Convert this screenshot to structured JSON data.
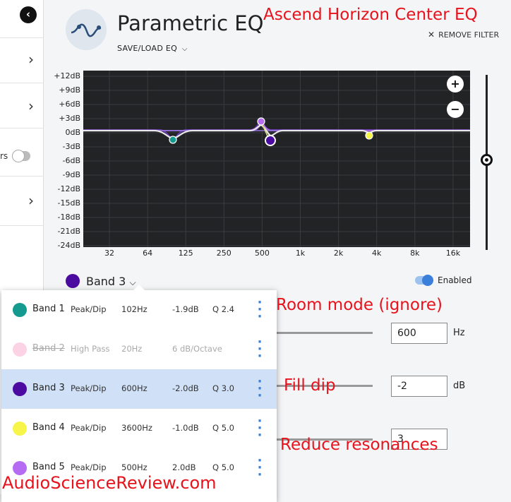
{
  "sidebar": {
    "partial_label": "rs"
  },
  "header": {
    "title": "Parametric EQ",
    "save_load": "SAVE/LOAD EQ",
    "remove_filter": "REMOVE FILTER"
  },
  "graph": {
    "y_labels": [
      "+12dB",
      "+9dB",
      "+6dB",
      "+3dB",
      "0dB",
      "-3dB",
      "-6dB",
      "-9dB",
      "-12dB",
      "-15dB",
      "-18dB",
      "-21dB",
      "-24dB"
    ],
    "x_labels": [
      "32",
      "64",
      "125",
      "250",
      "500",
      "1k",
      "2k",
      "4k",
      "8k",
      "16k"
    ],
    "zoom_in": "+",
    "zoom_out": "−"
  },
  "band_selector": {
    "label": "Band 3",
    "color": "#4b0aa0",
    "enabled_label": "Enabled",
    "enabled": true
  },
  "controls": {
    "frequency": "600",
    "frequency_unit": "Hz",
    "gain": "-2",
    "gain_unit": "dB",
    "q": "3"
  },
  "bands": [
    {
      "name": "Band 1",
      "type": "Peak/Dip",
      "freq": "102Hz",
      "gain": "-1.9dB",
      "q": "Q 2.4",
      "color": "#149a8e",
      "enabled": true,
      "selected": false
    },
    {
      "name": "Band 2",
      "type": "High Pass",
      "freq": "20Hz",
      "gain": "6 dB/Octave",
      "q": "",
      "color": "#fbd3e4",
      "enabled": false,
      "selected": false
    },
    {
      "name": "Band 3",
      "type": "Peak/Dip",
      "freq": "600Hz",
      "gain": "-2.0dB",
      "q": "Q 3.0",
      "color": "#4b0aa0",
      "enabled": true,
      "selected": true
    },
    {
      "name": "Band 4",
      "type": "Peak/Dip",
      "freq": "3600Hz",
      "gain": "-1.0dB",
      "q": "Q 5.0",
      "color": "#f7f44a",
      "enabled": true,
      "selected": false
    },
    {
      "name": "Band 5",
      "type": "Peak/Dip",
      "freq": "500Hz",
      "gain": "2.0dB",
      "q": "Q 5.0",
      "color": "#b56cf2",
      "enabled": true,
      "selected": false
    }
  ],
  "annotations": {
    "title": "Ascend Horizon Center EQ",
    "room_mode": "Room mode (ignore)",
    "fill_dip": "Fill dip",
    "reduce": "Reduce resonances",
    "watermark": "AudioScienceReview.com"
  }
}
